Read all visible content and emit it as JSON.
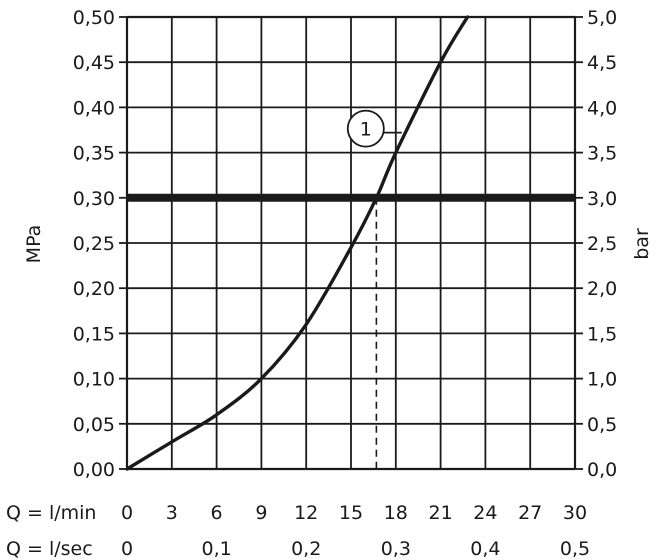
{
  "chart_data": {
    "type": "line",
    "title": "",
    "ylabel_left": "MPa",
    "ylabel_right": "bar",
    "x_row_labels": [
      "Q = l/min",
      "Q = l/sec"
    ],
    "xlim": [
      0,
      30
    ],
    "ylim_left": [
      0,
      0.5
    ],
    "ylim_right": [
      0,
      5.0
    ],
    "x_ticks_lmin": [
      "0",
      "3",
      "6",
      "9",
      "12",
      "15",
      "18",
      "21",
      "24",
      "27",
      "30"
    ],
    "x_ticks_lsec": [
      "0",
      "0,1",
      "0,2",
      "0,3",
      "0,4",
      "0,5"
    ],
    "x_ticks_lsec_values": [
      0,
      6,
      12,
      18,
      24,
      30
    ],
    "y_ticks_left": [
      "0,00",
      "0,05",
      "0,10",
      "0,15",
      "0,20",
      "0,25",
      "0,30",
      "0,35",
      "0,40",
      "0,45",
      "0,50"
    ],
    "y_ticks_right": [
      "0,0",
      "0,5",
      "1,0",
      "1,5",
      "2,0",
      "2,5",
      "3,0",
      "3,5",
      "4,0",
      "4,5",
      "5,0"
    ],
    "grid": true,
    "series": [
      {
        "x": [
          0,
          3,
          6,
          9,
          12,
          15,
          16.7,
          18,
          21,
          22.8
        ],
        "y": [
          0,
          0.03,
          0.06,
          0.1,
          0.16,
          0.245,
          0.3,
          0.35,
          0.45,
          0.5
        ]
      }
    ],
    "reference_line": {
      "y": 0.3
    },
    "dashed_marker": {
      "x": 16.7,
      "y": 0.3
    },
    "callout": {
      "label": "1",
      "x": 18,
      "y": 0.35
    }
  }
}
